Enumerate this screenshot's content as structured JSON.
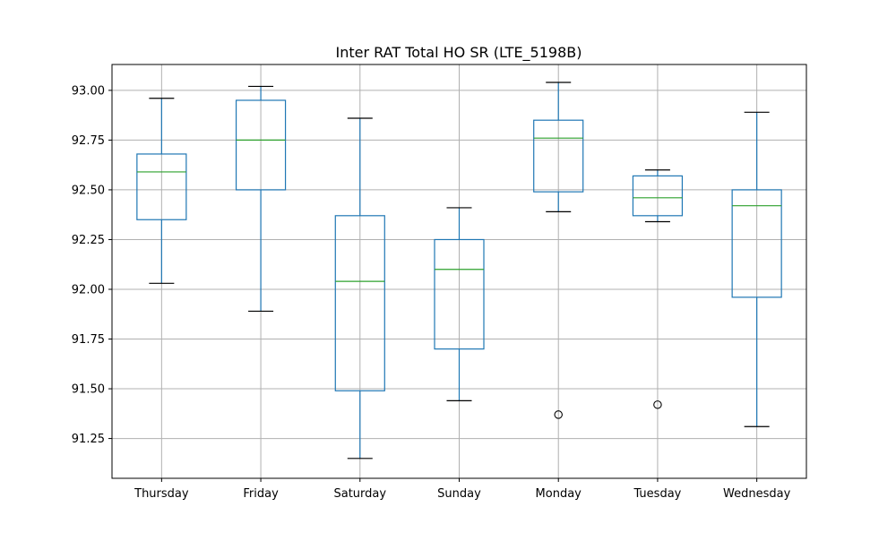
{
  "chart_data": {
    "type": "box",
    "title": "Inter RAT Total HO SR (LTE_5198B)",
    "xlabel": "",
    "ylabel": "",
    "categories": [
      "Thursday",
      "Friday",
      "Saturday",
      "Sunday",
      "Monday",
      "Tuesday",
      "Wednesday"
    ],
    "boxes": [
      {
        "category": "Thursday",
        "whisker_low": 92.03,
        "q1": 92.35,
        "median": 92.59,
        "q3": 92.68,
        "whisker_high": 92.96,
        "outliers": []
      },
      {
        "category": "Friday",
        "whisker_low": 91.89,
        "q1": 92.5,
        "median": 92.75,
        "q3": 92.95,
        "whisker_high": 93.02,
        "outliers": []
      },
      {
        "category": "Saturday",
        "whisker_low": 91.15,
        "q1": 91.49,
        "median": 92.04,
        "q3": 92.37,
        "whisker_high": 92.86,
        "outliers": []
      },
      {
        "category": "Sunday",
        "whisker_low": 91.44,
        "q1": 91.7,
        "median": 92.1,
        "q3": 92.25,
        "whisker_high": 92.41,
        "outliers": []
      },
      {
        "category": "Monday",
        "whisker_low": 92.39,
        "q1": 92.49,
        "median": 92.76,
        "q3": 92.85,
        "whisker_high": 93.04,
        "outliers": [
          91.37
        ]
      },
      {
        "category": "Tuesday",
        "whisker_low": 92.34,
        "q1": 92.37,
        "median": 92.46,
        "q3": 92.57,
        "whisker_high": 92.6,
        "outliers": [
          91.42
        ]
      },
      {
        "category": "Wednesday",
        "whisker_low": 91.31,
        "q1": 91.96,
        "median": 92.42,
        "q3": 92.5,
        "whisker_high": 92.89,
        "outliers": []
      }
    ],
    "ylim": [
      91.05,
      93.13
    ],
    "yticks": [
      "91.25",
      "91.50",
      "91.75",
      "92.00",
      "92.25",
      "92.50",
      "92.75",
      "93.00"
    ],
    "grid": true,
    "colors": {
      "box": "#1f77b4",
      "median": "#2ca02c",
      "cap": "#000000",
      "grid": "#b0b0b0",
      "outlier": "#000000"
    }
  }
}
